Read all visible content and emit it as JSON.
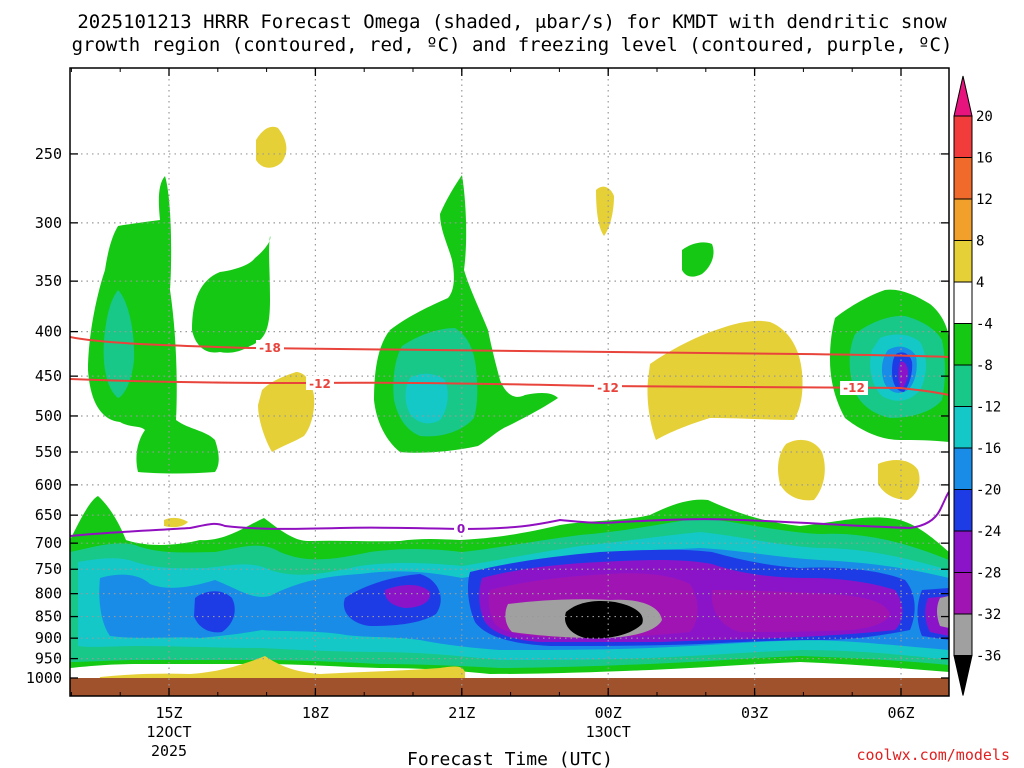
{
  "title_line1": "2025101213 HRRR Forecast Omega (shaded, μbar/s) for KMDT with dendritic snow",
  "title_line2": "growth region (contoured, red, ºC) and freezing level (contoured, purple, ºC)",
  "credit": "coolwx.com/models",
  "chart_data": {
    "type": "time-height cross section (filled contour)",
    "title": "2025101213 HRRR Forecast Omega (shaded, μbar/s) for KMDT with dendritic snow growth region (contoured, red, ºC) and freezing level (contoured, purple, ºC)",
    "xlabel": "Forecast Time (UTC)",
    "ylabel": "",
    "y_ticks": [
      "250",
      "300",
      "350",
      "400",
      "450",
      "500",
      "550",
      "600",
      "650",
      "700",
      "750",
      "800",
      "850",
      "900",
      "950",
      "1000"
    ],
    "ylim": [
      1000,
      200
    ],
    "x_ticks": [
      {
        "label": "15Z",
        "sub1": "12OCT",
        "sub2": "2025"
      },
      {
        "label": "18Z",
        "sub1": "",
        "sub2": ""
      },
      {
        "label": "21Z",
        "sub1": "",
        "sub2": ""
      },
      {
        "label": "00Z",
        "sub1": "13OCT",
        "sub2": ""
      },
      {
        "label": "03Z",
        "sub1": "",
        "sub2": ""
      },
      {
        "label": "06Z",
        "sub1": "",
        "sub2": ""
      }
    ],
    "xlim_hours": [
      13,
      31
    ],
    "colorbar": {
      "labels": [
        "20",
        "16",
        "12",
        "8",
        "4",
        "-4",
        "-8",
        "-12",
        "-16",
        "-20",
        "-24",
        "-28",
        "-32",
        "-36"
      ],
      "colors": [
        "#e8147e",
        "#f23c3c",
        "#f06a2c",
        "#f2a02c",
        "#e6d038",
        "#ffffff",
        "#14c814",
        "#18c888",
        "#14c8c8",
        "#188ce6",
        "#1e3ce6",
        "#8c14c8",
        "#a014b4",
        "#a0a0a0",
        "#000000"
      ],
      "units": "μbar/s"
    },
    "contours": [
      {
        "name": "dendritic -18",
        "color": "#e8443c",
        "label": "-18",
        "pressure_hpa": [
          412,
          428,
          432,
          436
        ]
      },
      {
        "name": "dendritic -12",
        "color": "#e8443c",
        "label": "-12",
        "pressure_hpa": [
          465,
          470,
          474,
          480
        ]
      },
      {
        "name": "freezing level 0",
        "color": "#9010c0",
        "label": "0",
        "pressure_hpa": [
          695,
          680,
          676,
          668,
          662
        ]
      }
    ],
    "omega_features": [
      {
        "region": "low-level ascent core",
        "time": "00Z 13OCT",
        "pressure_hpa": 850,
        "min_value": "-36"
      },
      {
        "region": "mid-level ascent",
        "time": "21Z 12OCT",
        "pressure_hpa": 450,
        "min_value": "-16"
      },
      {
        "region": "mid-level ascent",
        "time": "06Z 13OCT",
        "pressure_hpa": 450,
        "min_value": "-24"
      },
      {
        "region": "weak descent",
        "time": "01Z 13OCT",
        "pressure_hpa": 450,
        "max_value": "4"
      }
    ]
  }
}
